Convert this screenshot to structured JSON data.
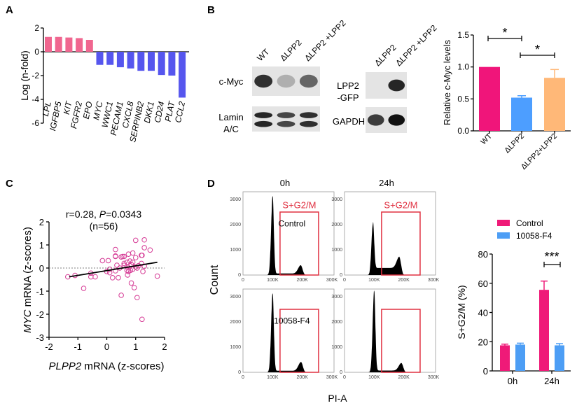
{
  "panels": {
    "a": "A",
    "b": "B",
    "c": "C",
    "d": "D"
  },
  "blots": {
    "left": {
      "lanes": [
        "WT",
        "ΔLPP2",
        "ΔLPP2 +LPP2"
      ],
      "rows": [
        {
          "label_lines": [
            "c-Myc"
          ],
          "band_intensity": [
            0.85,
            0.25,
            0.6
          ]
        },
        {
          "label_lines": [
            "Lamin",
            "A/C"
          ],
          "band_intensity": [
            0.9,
            0.75,
            0.85
          ]
        }
      ]
    },
    "right": {
      "lanes": [
        "ΔLPP2",
        "ΔLPP2 +LPP2"
      ],
      "rows": [
        {
          "label_lines": [
            "LPP2",
            "-GFP"
          ],
          "band_intensity": [
            0.0,
            0.9
          ]
        },
        {
          "label_lines": [
            "GAPDH"
          ],
          "band_intensity": [
            0.8,
            1.0
          ]
        }
      ]
    }
  },
  "chart_data": [
    {
      "id": "A",
      "type": "bar",
      "ylabel": "Log (n-fold)",
      "categories": [
        "LPL",
        "IGFBP5",
        "KIT",
        "FGFR2",
        "EPO",
        "MYC",
        "WWC1",
        "PECAM1",
        "CXCL8",
        "SERPINB2",
        "DKK1",
        "CD24",
        "PLAT",
        "CCL2"
      ],
      "values": [
        1.25,
        1.25,
        1.2,
        1.15,
        1.0,
        -1.1,
        -1.1,
        -1.3,
        -1.4,
        -1.6,
        -1.6,
        -1.95,
        -2.0,
        -3.85
      ],
      "ylim": [
        -6,
        2
      ],
      "yticks": [
        "2",
        "0",
        "-2",
        "-4",
        "-6"
      ],
      "colors": {
        "positive": "#f0668f",
        "negative": "#5656ee"
      }
    },
    {
      "id": "B",
      "type": "bar",
      "ylabel": "Relative c-Myc levels",
      "categories": [
        "WT",
        "ΔLPP2",
        "ΔLPP2+LPP2"
      ],
      "values": [
        1.0,
        0.52,
        0.83
      ],
      "errors": [
        0,
        0.03,
        0.13
      ],
      "ylim": [
        0,
        1.5
      ],
      "yticks": [
        "0.0",
        "0.5",
        "1.0",
        "1.5"
      ],
      "colors": [
        "#f0157a",
        "#4d9eff",
        "#ffb878"
      ],
      "significance": [
        {
          "from": 0,
          "to": 1,
          "label": "*"
        },
        {
          "from": 1,
          "to": 2,
          "label": "*"
        }
      ]
    },
    {
      "id": "C",
      "type": "scatter",
      "annotation": {
        "r": "r=0.28, ",
        "p_symbol": "P",
        "p_value": "=0.0343",
        "n": "(n=56)"
      },
      "xlabel": {
        "gene": "PLPP2",
        "rest": " mRNA (z-scores)"
      },
      "ylabel": {
        "gene": "MYC",
        "rest": " mRNA (z-scores)"
      },
      "xlim": [
        -2,
        2
      ],
      "ylim": [
        -3,
        2
      ],
      "xticks": [
        "-2",
        "-1",
        "0",
        "1",
        "2"
      ],
      "yticks": [
        "2",
        "1",
        "0",
        "-1",
        "-2",
        "-3"
      ],
      "color": "#d63c96",
      "regression": {
        "x": [
          -1.3,
          1.75
        ],
        "y": [
          -0.38,
          0.25
        ]
      },
      "points": [
        [
          -1.35,
          -0.38
        ],
        [
          -1.1,
          -0.32
        ],
        [
          -0.8,
          -0.88
        ],
        [
          -0.55,
          -0.22
        ],
        [
          -0.55,
          -0.38
        ],
        [
          -0.4,
          -0.38
        ],
        [
          -0.15,
          0.32
        ],
        [
          0.05,
          0.32
        ],
        [
          0.0,
          -0.15
        ],
        [
          0.1,
          -0.2
        ],
        [
          0.1,
          -0.05
        ],
        [
          0.2,
          -0.42
        ],
        [
          0.3,
          0.8
        ],
        [
          0.3,
          0.5
        ],
        [
          0.3,
          0.52
        ],
        [
          0.3,
          -0.12
        ],
        [
          0.35,
          0.12
        ],
        [
          0.4,
          -0.42
        ],
        [
          0.5,
          -1.18
        ],
        [
          0.5,
          0.48
        ],
        [
          0.55,
          0.5
        ],
        [
          0.6,
          0.5
        ],
        [
          0.6,
          0.12
        ],
        [
          0.7,
          0.25
        ],
        [
          0.7,
          0.05
        ],
        [
          0.7,
          -0.1
        ],
        [
          0.72,
          -0.3
        ],
        [
          0.75,
          0.6
        ],
        [
          0.75,
          -0.15
        ],
        [
          0.8,
          0.3
        ],
        [
          0.8,
          0.1
        ],
        [
          0.82,
          -0.1
        ],
        [
          0.85,
          -0.65
        ],
        [
          0.9,
          0.65
        ],
        [
          0.9,
          0.25
        ],
        [
          0.9,
          -0.05
        ],
        [
          0.95,
          -0.85
        ],
        [
          1.0,
          1.2
        ],
        [
          1.0,
          0.05
        ],
        [
          1.0,
          0.45
        ],
        [
          1.05,
          -1.28
        ],
        [
          1.05,
          0.0
        ],
        [
          1.1,
          0.1
        ],
        [
          1.2,
          0.55
        ],
        [
          1.2,
          0.2
        ],
        [
          1.22,
          0.55
        ],
        [
          1.25,
          -0.15
        ],
        [
          1.3,
          1.22
        ],
        [
          1.3,
          0.88
        ],
        [
          1.3,
          0.08
        ],
        [
          1.5,
          0.78
        ],
        [
          1.75,
          -0.35
        ],
        [
          1.22,
          -2.22
        ],
        [
          0.6,
          0.2
        ],
        [
          0.85,
          0.15
        ],
        [
          0.45,
          0.0
        ]
      ]
    },
    {
      "id": "D-flow",
      "type": "histogram",
      "columns": [
        "0h",
        "24h"
      ],
      "xlabel": "PI-A",
      "ylabel": "Count",
      "xticks": [
        "0",
        "100K",
        "200K",
        "300K"
      ],
      "yticks": [
        "0",
        "1000",
        "2000",
        "3000"
      ],
      "gate": {
        "label": "S+G2/M",
        "x": [
          125000,
          255000
        ],
        "top": 2500,
        "color": "#e03040"
      },
      "panels": [
        {
          "time": "0h",
          "label": "Control",
          "show_gate_label": true,
          "g1_peak": 3100,
          "g1_pos": 100,
          "s_level": 60,
          "g2_peak": 330,
          "g2_pos": 195
        },
        {
          "time": "24h",
          "label": "",
          "show_gate_label": true,
          "g1_peak": 1850,
          "g1_pos": 96,
          "s_level": 280,
          "g2_peak": 450,
          "g2_pos": 185
        },
        {
          "time": "0h",
          "label": "10058-F4",
          "show_gate_label": false,
          "g1_peak": 3100,
          "g1_pos": 100,
          "s_level": 60,
          "g2_peak": 350,
          "g2_pos": 196
        },
        {
          "time": "24h",
          "label": "",
          "show_gate_label": false,
          "g1_peak": 3200,
          "g1_pos": 100,
          "s_level": 70,
          "g2_peak": 300,
          "g2_pos": 192
        }
      ]
    },
    {
      "id": "D-bar",
      "type": "bar",
      "ylabel": "S+G2/M (%)",
      "categories": [
        "0h",
        "24h"
      ],
      "series": [
        {
          "name": "Control",
          "values": [
            17.5,
            55.5
          ],
          "errors": [
            0.8,
            6.0
          ],
          "color": "#ef1a78"
        },
        {
          "name": "10058-F4",
          "values": [
            18.0,
            17.5
          ],
          "errors": [
            1.0,
            1.2
          ],
          "color": "#4d9ef5"
        }
      ],
      "ylim": [
        0,
        80
      ],
      "yticks": [
        "0",
        "20",
        "40",
        "60",
        "80"
      ],
      "legend": "top",
      "significance": {
        "category": "24h",
        "label": "***"
      }
    }
  ]
}
